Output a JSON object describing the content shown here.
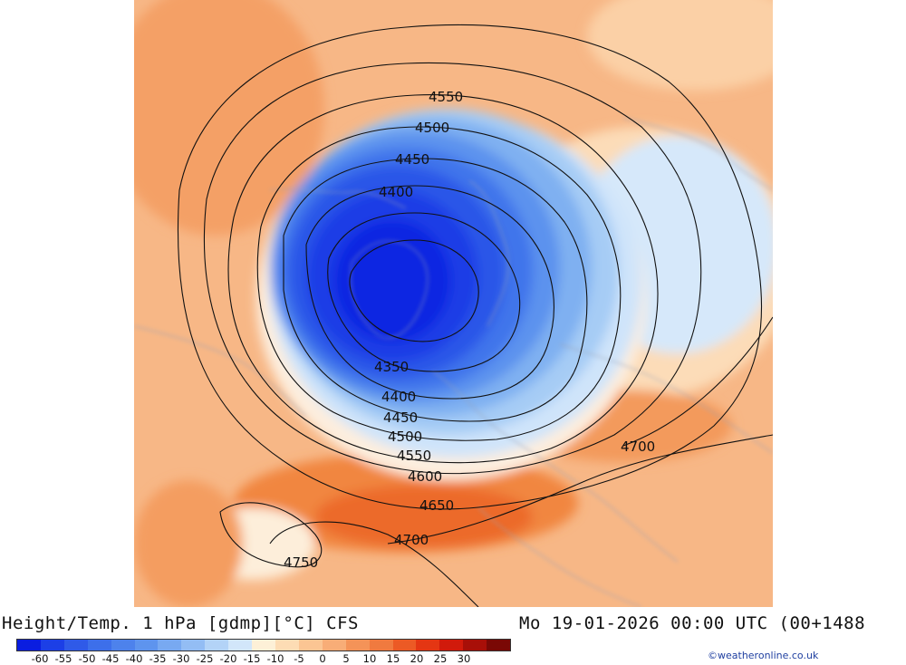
{
  "title": "Height/Temp. 1 hPa [gdmp][°C] CFS",
  "datetime": "Mo 19-01-2026 00:00 UTC (00+1488",
  "credit": "©weatheronline.co.uk",
  "legend": {
    "ticks": [
      "-60",
      "-55",
      "-50",
      "-45",
      "-40",
      "-35",
      "-30",
      "-25",
      "-20",
      "-15",
      "-10",
      "-5",
      "0",
      "5",
      "10",
      "15",
      "20",
      "25",
      "30"
    ],
    "colors": [
      "#0a1de0",
      "#1c3fe6",
      "#2f5ae8",
      "#3d6fea",
      "#4d82ec",
      "#5e94ee",
      "#78a9f1",
      "#93bdf4",
      "#b3d3f7",
      "#d2e6fa",
      "#fdf0d7",
      "#fddcb4",
      "#fbc593",
      "#f8ad77",
      "#f49358",
      "#f07a3f",
      "#ec5a25",
      "#e43613",
      "#d11a0b",
      "#a80f08",
      "#7a0805"
    ]
  },
  "contour_labels": [
    "4550",
    "4500",
    "4450",
    "4400",
    "4350",
    "4400",
    "4450",
    "4500",
    "4550",
    "4600",
    "4650",
    "4700",
    "4700",
    "4750"
  ],
  "colors": {
    "background_warm": "#f6b27e",
    "cold_core": "#0a2be8",
    "contour": "#111111"
  }
}
